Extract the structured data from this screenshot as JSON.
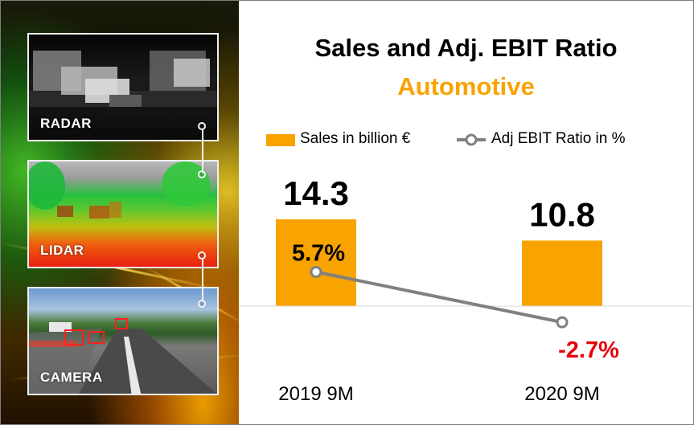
{
  "left_panel": {
    "sensors": [
      {
        "label": "RADAR"
      },
      {
        "label": "LIDAR"
      },
      {
        "label": "CAMERA"
      }
    ]
  },
  "colors": {
    "sales_bar": "#f8a300",
    "ebit_line": "#808080",
    "ebit_negative_label": "#e8000b",
    "subtitle": "#f8a300"
  },
  "chart_data": {
    "type": "bar",
    "title": "Sales and Adj. EBIT Ratio",
    "subtitle": "Automotive",
    "categories": [
      "2019 9M",
      "2020 9M"
    ],
    "series": [
      {
        "name": "Sales in billion €",
        "kind": "bar",
        "values": [
          14.3,
          10.8
        ],
        "labels": [
          "14.3",
          "10.8"
        ]
      },
      {
        "name": "Adj EBIT Ratio in %",
        "kind": "line",
        "values": [
          5.7,
          -2.7
        ],
        "labels": [
          "5.7%",
          "-2.7%"
        ]
      }
    ],
    "legend_position": "top",
    "grid": false
  }
}
